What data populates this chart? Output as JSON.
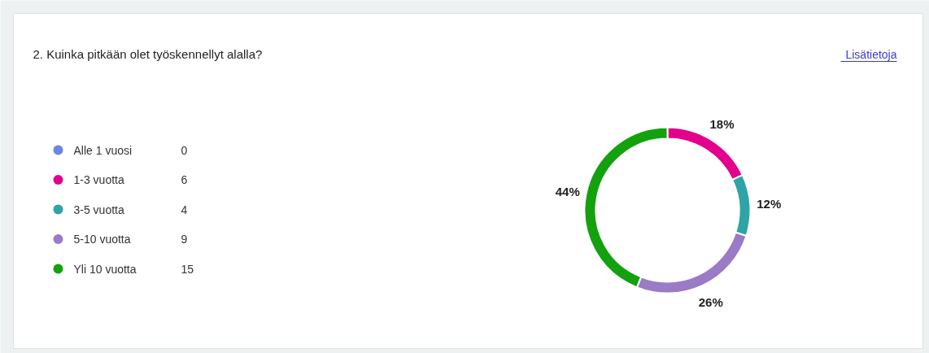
{
  "chart_data": {
    "type": "donut",
    "title": "2. Kuinka pitkään olet työskennellyt alalla?",
    "categories": [
      "Alle 1 vuosi",
      "1-3 vuotta",
      "3-5 vuotta",
      "5-10 vuotta",
      "Yli 10 vuotta"
    ],
    "values": [
      0,
      18,
      12,
      26,
      44
    ],
    "colors": [
      "#6b84e8",
      "#e3008c",
      "#2ea3a8",
      "#9b7ac6",
      "#13a10e"
    ],
    "value_labels": [
      null,
      "18%",
      "12%",
      "26%",
      "44%"
    ],
    "legend": "left",
    "annotations": [
      "Lisätietoja",
      "0",
      "6",
      "4",
      "9",
      "15"
    ]
  }
}
